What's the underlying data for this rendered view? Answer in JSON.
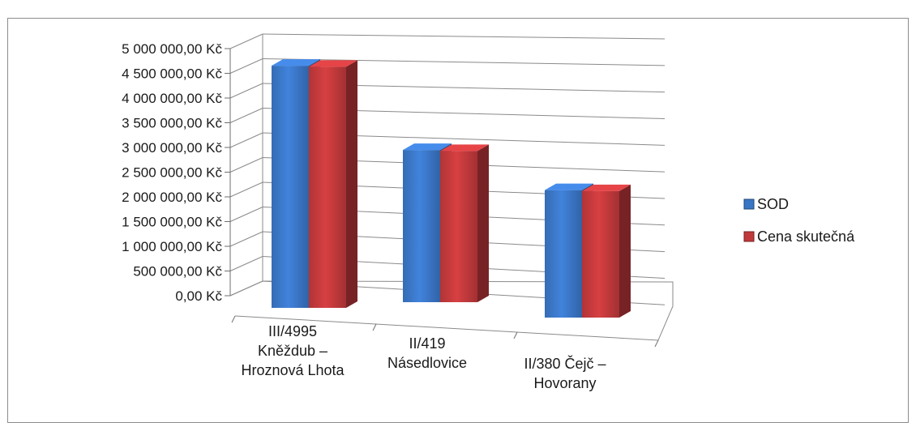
{
  "chart_data": {
    "type": "bar",
    "categories": [
      [
        "III/4995",
        "Kněždub –",
        "Hroznová Lhota"
      ],
      [
        "II/419",
        "Násedlovice"
      ],
      [
        "II/380 Čejč –",
        "Hovorany"
      ]
    ],
    "series": [
      {
        "name": "SOD",
        "values": [
          4900000,
          3080000,
          2580000
        ],
        "color": "#3a75c4"
      },
      {
        "name": "Cena skutečná",
        "values": [
          4880000,
          3060000,
          2560000
        ],
        "color": "#c0393b"
      }
    ],
    "y_ticks": [
      "0,00 Kč",
      "500 000,00 Kč",
      "1 000 000,00 Kč",
      "1 500 000,00 Kč",
      "2 000 000,00 Kč",
      "2 500 000,00 Kč",
      "3 000 000,00 Kč",
      "3 500 000,00 Kč",
      "4 000 000,00 Kč",
      "4 500 000,00 Kč",
      "5 000 000,00 Kč"
    ],
    "ylim": [
      0,
      5000000
    ],
    "legend_position": "right",
    "grid": true
  }
}
